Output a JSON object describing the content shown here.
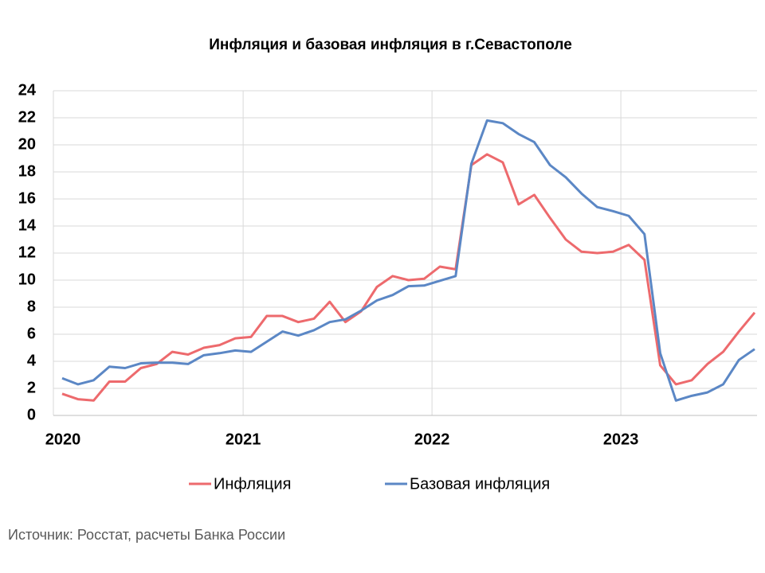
{
  "chart_data": {
    "type": "line",
    "title": "Инфляция и базовая инфляция в г.Севастополе",
    "source": "Источник: Росстат, расчеты Банка России",
    "categories": [
      "2020",
      null,
      null,
      null,
      null,
      null,
      null,
      null,
      null,
      null,
      null,
      null,
      "2021",
      null,
      null,
      null,
      null,
      null,
      null,
      null,
      null,
      null,
      null,
      null,
      "2022",
      null,
      null,
      null,
      null,
      null,
      null,
      null,
      null,
      null,
      null,
      null,
      "2023",
      null,
      null,
      null,
      null,
      null,
      null,
      null,
      null
    ],
    "series": [
      {
        "name": "Инфляция",
        "color": "#ed6a6d",
        "values": [
          1.6,
          1.2,
          1.1,
          2.5,
          2.5,
          3.5,
          3.8,
          4.7,
          4.5,
          5.0,
          5.2,
          5.7,
          5.8,
          7.35,
          7.35,
          6.9,
          7.15,
          8.4,
          6.9,
          7.7,
          9.5,
          10.3,
          10.0,
          10.1,
          11.0,
          10.8,
          18.5,
          19.3,
          18.7,
          15.6,
          16.3,
          14.6,
          13.0,
          12.1,
          12.0,
          12.1,
          12.6,
          11.5,
          3.7,
          2.3,
          2.6,
          3.8,
          4.7,
          6.2,
          7.6
        ]
      },
      {
        "name": "Базовая инфляция",
        "color": "#5b87c5",
        "values": [
          2.75,
          2.3,
          2.6,
          3.6,
          3.5,
          3.85,
          3.9,
          3.9,
          3.8,
          4.45,
          4.6,
          4.8,
          4.7,
          5.45,
          6.2,
          5.9,
          6.3,
          6.9,
          7.1,
          7.75,
          8.5,
          8.9,
          9.55,
          9.6,
          9.95,
          10.3,
          18.6,
          21.8,
          21.6,
          20.8,
          20.2,
          18.5,
          17.6,
          16.4,
          15.4,
          15.1,
          14.75,
          13.4,
          4.6,
          1.1,
          1.45,
          1.7,
          2.3,
          4.1,
          4.9
        ]
      }
    ],
    "ylim": [
      0,
      24
    ],
    "yticks": [
      0,
      2,
      4,
      6,
      8,
      10,
      12,
      14,
      16,
      18,
      20,
      22,
      24
    ],
    "grid": true,
    "legend": "bottom"
  }
}
